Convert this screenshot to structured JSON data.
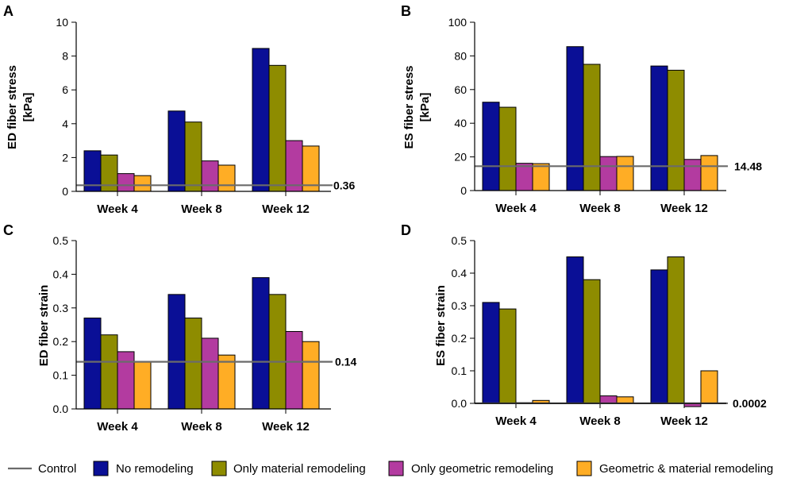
{
  "colors": {
    "control": "#6b6b6b",
    "series": [
      "#0a0f96",
      "#8e8c00",
      "#b33ba0",
      "#ffad25"
    ]
  },
  "legend": {
    "items": [
      {
        "label": "Control",
        "kind": "line"
      },
      {
        "label": "No remodeling",
        "kind": "box"
      },
      {
        "label": "Only material remodeling",
        "kind": "box"
      },
      {
        "label": "Only geometric remodeling",
        "kind": "box"
      },
      {
        "label": "Geometric & material remodeling",
        "kind": "box"
      }
    ]
  },
  "chart_data": [
    {
      "panel": "A",
      "type": "bar",
      "ylabel_lines": [
        "ED fiber stress",
        "[kPa]"
      ],
      "ylim": [
        0,
        10
      ],
      "yticks": [
        "0",
        "2",
        "4",
        "6",
        "8",
        "10"
      ],
      "categories": [
        "Week 4",
        "Week 8",
        "Week 12"
      ],
      "series": [
        {
          "name": "No remodeling",
          "values": [
            2.4,
            4.75,
            8.45
          ]
        },
        {
          "name": "Only material remodeling",
          "values": [
            2.15,
            4.1,
            7.45
          ]
        },
        {
          "name": "Only geometric remodeling",
          "values": [
            1.05,
            1.8,
            3.0
          ]
        },
        {
          "name": "Geometric & material remodeling",
          "values": [
            0.93,
            1.55,
            2.68
          ]
        }
      ],
      "control": {
        "value": 0.36,
        "label": "0.36"
      }
    },
    {
      "panel": "B",
      "type": "bar",
      "ylabel_lines": [
        "ES fiber stress",
        "[kPa]"
      ],
      "ylim": [
        0,
        100
      ],
      "yticks": [
        "0",
        "20",
        "40",
        "60",
        "80",
        "100"
      ],
      "categories": [
        "Week 4",
        "Week 8",
        "Week 12"
      ],
      "series": [
        {
          "name": "No remodeling",
          "values": [
            52.5,
            85.5,
            74
          ]
        },
        {
          "name": "Only material remodeling",
          "values": [
            49.5,
            75,
            71.5
          ]
        },
        {
          "name": "Only geometric remodeling",
          "values": [
            16.2,
            20.2,
            18.5
          ]
        },
        {
          "name": "Geometric & material remodeling",
          "values": [
            16,
            20.3,
            20.8
          ]
        }
      ],
      "control": {
        "value": 14.48,
        "label": "14.48"
      }
    },
    {
      "panel": "C",
      "type": "bar",
      "ylabel_lines": [
        "ED fiber strain"
      ],
      "ylim": [
        0,
        0.5
      ],
      "yticks": [
        "0.0",
        "0.1",
        "0.2",
        "0.3",
        "0.4",
        "0.5"
      ],
      "categories": [
        "Week 4",
        "Week 8",
        "Week 12"
      ],
      "series": [
        {
          "name": "No remodeling",
          "values": [
            0.27,
            0.34,
            0.39
          ]
        },
        {
          "name": "Only material remodeling",
          "values": [
            0.22,
            0.27,
            0.34
          ]
        },
        {
          "name": "Only geometric remodeling",
          "values": [
            0.17,
            0.21,
            0.23
          ]
        },
        {
          "name": "Geometric & material remodeling",
          "values": [
            0.14,
            0.16,
            0.2
          ]
        }
      ],
      "control": {
        "value": 0.14,
        "label": "0.14"
      }
    },
    {
      "panel": "D",
      "type": "bar",
      "ylabel_lines": [
        "ES fiber strain"
      ],
      "ylim": [
        0,
        0.5
      ],
      "yticks": [
        "0.0",
        "0.1",
        "0.2",
        "0.3",
        "0.4",
        "0.5"
      ],
      "categories": [
        "Week 4",
        "Week 8",
        "Week 12"
      ],
      "series": [
        {
          "name": "No remodeling",
          "values": [
            0.31,
            0.45,
            0.41
          ]
        },
        {
          "name": "Only material remodeling",
          "values": [
            0.29,
            0.38,
            0.45
          ]
        },
        {
          "name": "Only geometric remodeling",
          "values": [
            0.002,
            0.023,
            -0.01
          ]
        },
        {
          "name": "Geometric & material remodeling",
          "values": [
            0.009,
            0.02,
            0.1
          ]
        }
      ],
      "control": {
        "value": 0.0002,
        "label": "0.0002"
      }
    }
  ]
}
